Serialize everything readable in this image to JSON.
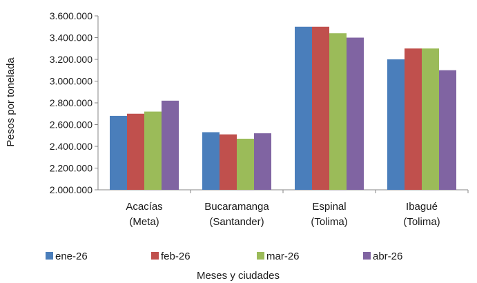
{
  "chart_data": {
    "type": "bar",
    "title": "",
    "xlabel": "Meses y ciudades",
    "ylabel": "Pesos por tonelada",
    "ylim": [
      2000000,
      3600000
    ],
    "yticks": [
      2000000,
      2200000,
      2400000,
      2600000,
      2800000,
      3000000,
      3200000,
      3400000,
      3600000
    ],
    "ytick_labels": [
      "2.000.000",
      "2.200.000",
      "2.400.000",
      "2.600.000",
      "2.800.000",
      "3.000.000",
      "3.200.000",
      "3.400.000",
      "3.600.000"
    ],
    "categories": [
      [
        "Acacías",
        "(Meta)"
      ],
      [
        "Bucaramanga",
        "(Santander)"
      ],
      [
        "Espinal",
        "(Tolima)"
      ],
      [
        "Ibagué",
        "(Tolima)"
      ]
    ],
    "series": [
      {
        "name": "ene-26",
        "color": "#4a7ebb",
        "values": [
          2680000,
          2530000,
          3500000,
          3200000
        ]
      },
      {
        "name": "feb-26",
        "color": "#c0504d",
        "values": [
          2700000,
          2510000,
          3500000,
          3300000
        ]
      },
      {
        "name": "mar-26",
        "color": "#9bbb59",
        "values": [
          2720000,
          2470000,
          3440000,
          3300000
        ]
      },
      {
        "name": "abr-26",
        "color": "#8064a2",
        "values": [
          2820000,
          2520000,
          3400000,
          3100000
        ]
      }
    ],
    "grid": false,
    "legend_position": "bottom"
  }
}
